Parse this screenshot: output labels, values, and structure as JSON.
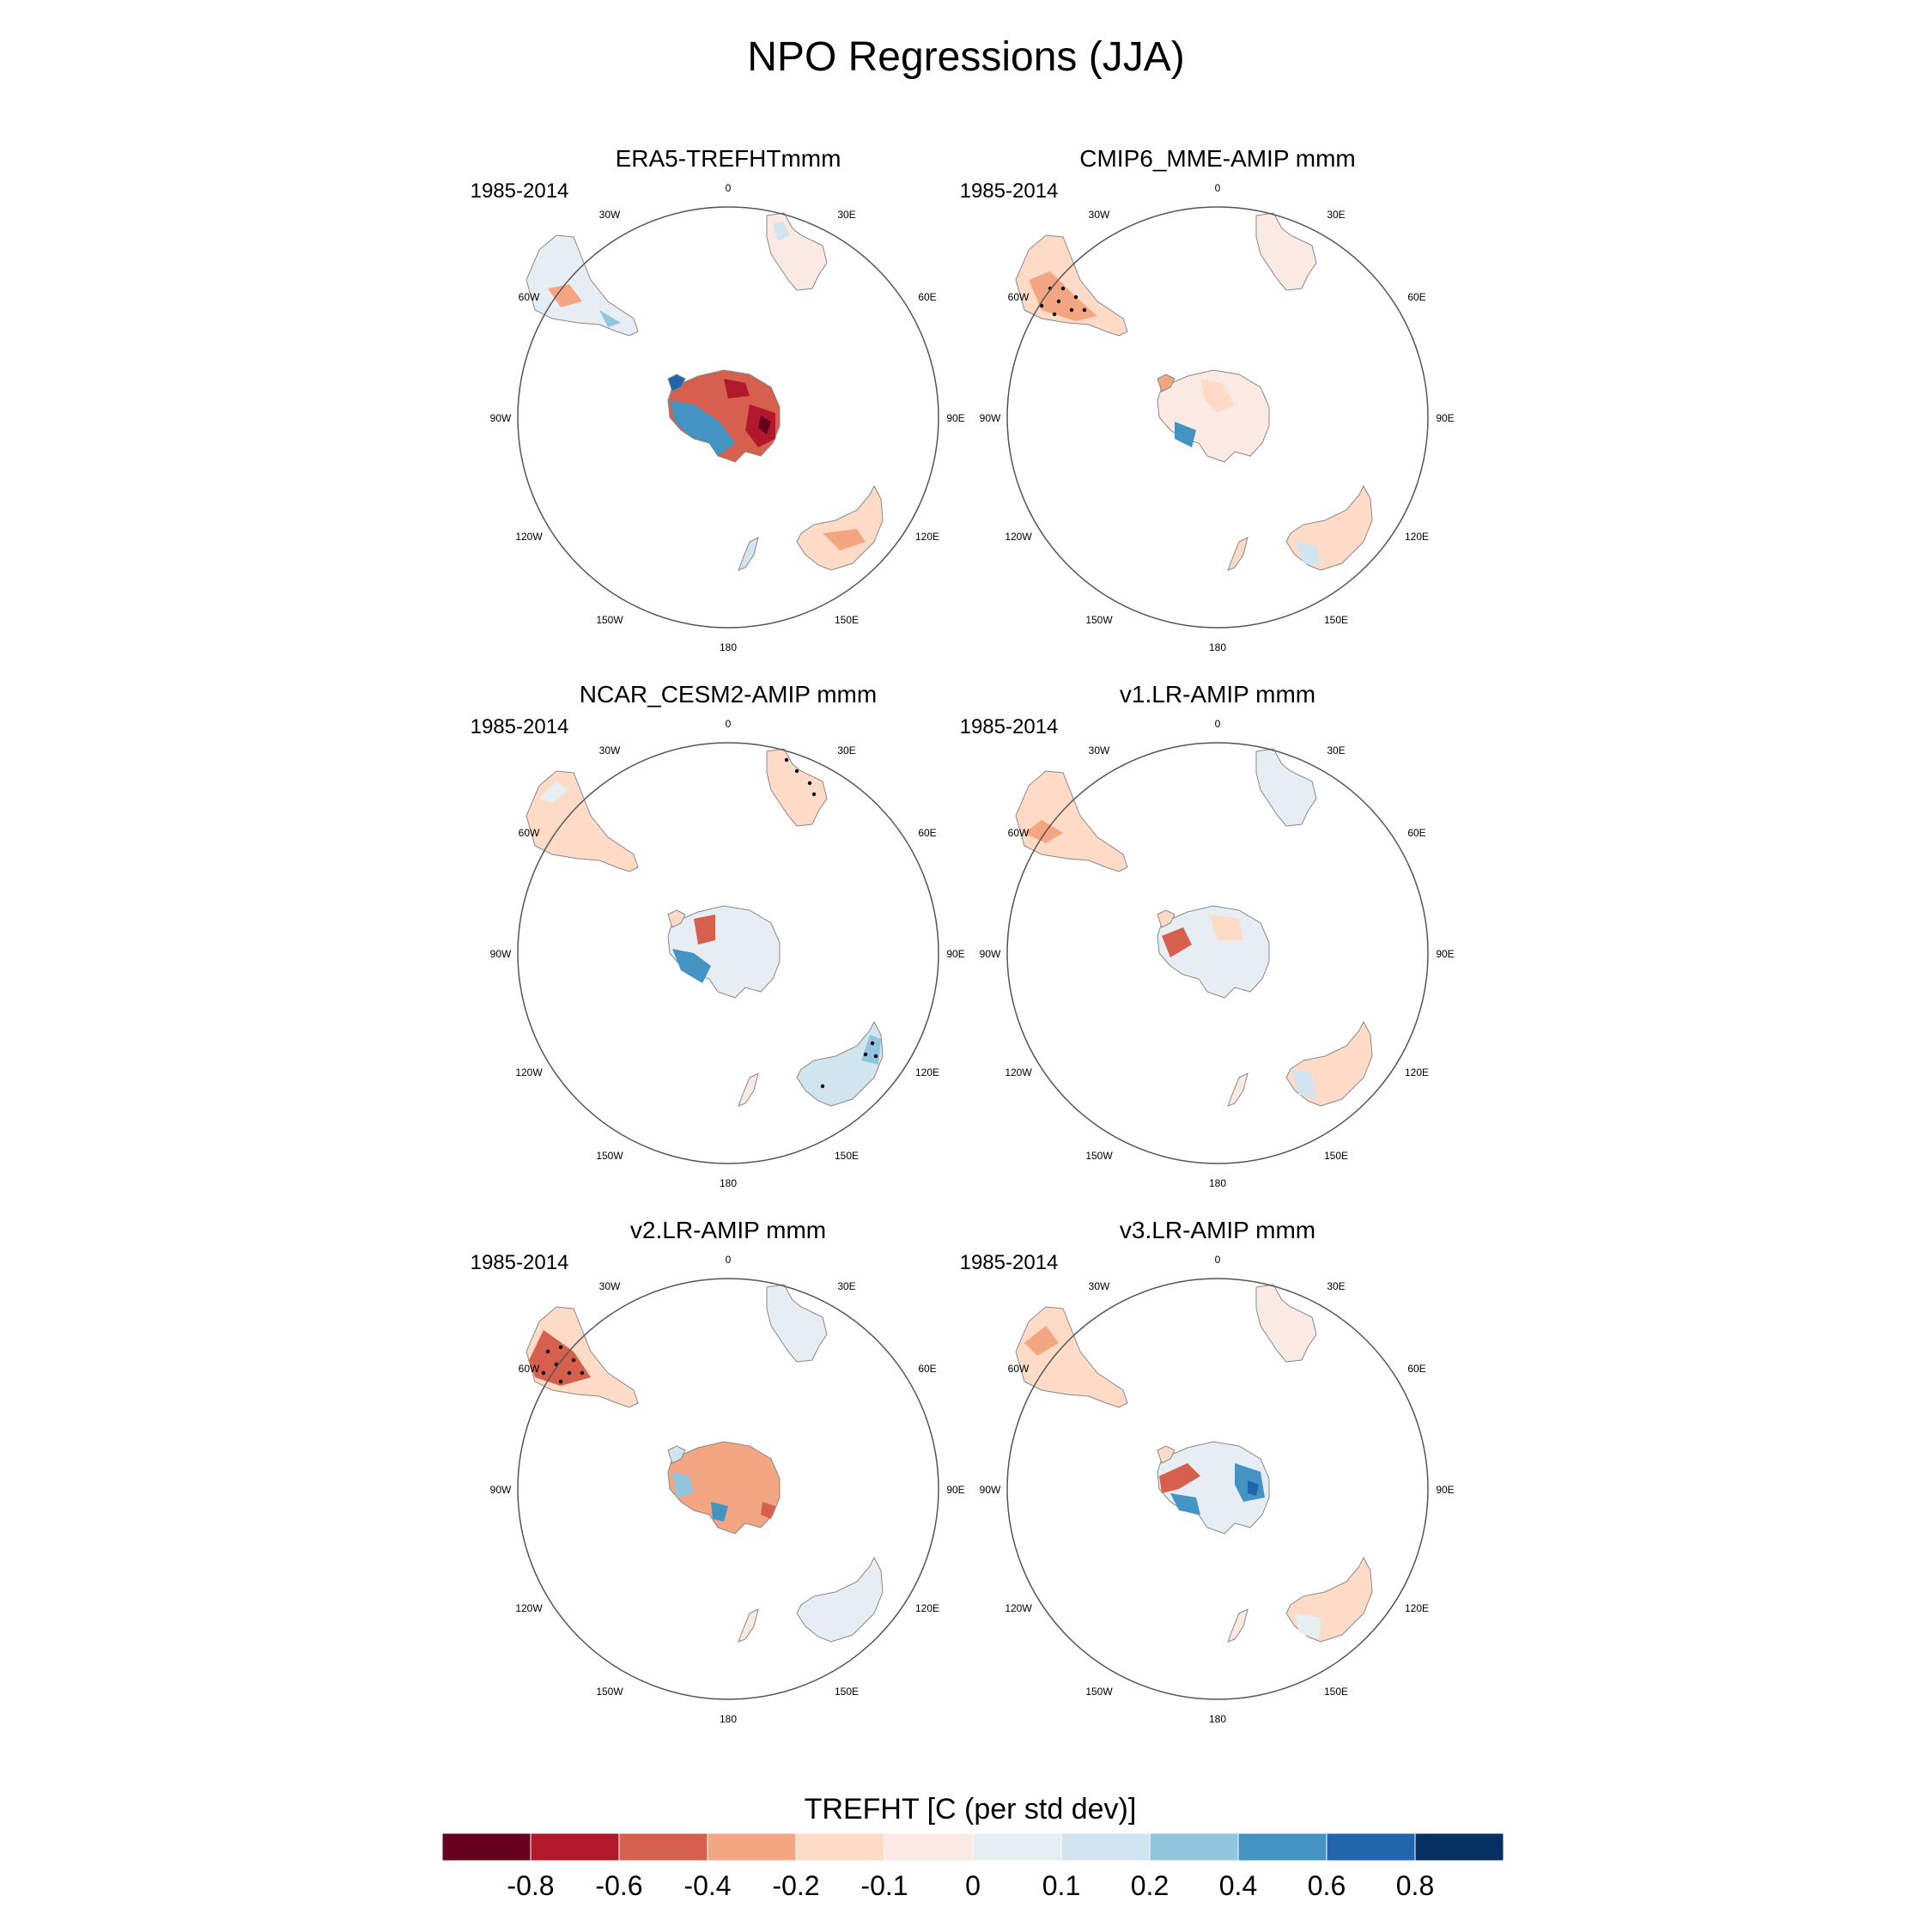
{
  "figure": {
    "title": "NPO Regressions (JJA)"
  },
  "lon_labels": [
    "0",
    "30E",
    "60E",
    "90E",
    "120E",
    "150E",
    "180",
    "150W",
    "120W",
    "90W",
    "60W",
    "30W"
  ],
  "panels": [
    {
      "title": "ERA5-TREFHTmmm",
      "period": "1985-2014"
    },
    {
      "title": "CMIP6_MME-AMIP  mmm",
      "period": "1985-2014"
    },
    {
      "title": "NCAR_CESM2-AMIP  mmm",
      "period": "1985-2014"
    },
    {
      "title": "v1.LR-AMIP  mmm",
      "period": "1985-2014"
    },
    {
      "title": "v2.LR-AMIP  mmm",
      "period": "1985-2014"
    },
    {
      "title": "v3.LR-AMIP  mmm",
      "period": "1985-2014"
    }
  ],
  "colorbar": {
    "title": "TREFHT [C (per std dev)]",
    "colors": [
      "#67001f",
      "#b2182b",
      "#d6604d",
      "#f4a582",
      "#fddbc7",
      "#fbeae3",
      "#e6eef4",
      "#d1e5f0",
      "#92c5de",
      "#4393c3",
      "#2166ac",
      "#053061"
    ],
    "labels": [
      "-0.8",
      "-0.6",
      "-0.4",
      "-0.2",
      "-0.1",
      "0",
      "0.1",
      "0.2",
      "0.4",
      "0.6",
      "0.8"
    ]
  }
}
